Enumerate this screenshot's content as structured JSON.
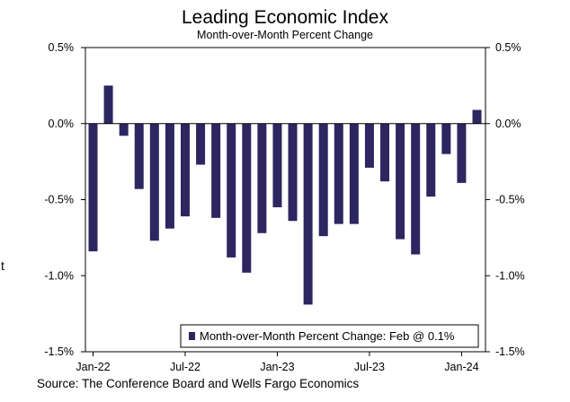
{
  "chart_data": {
    "type": "bar",
    "title": "Leading Economic Index",
    "subtitle": "Month-over-Month Percent Change",
    "x": [
      "Jan-22",
      "Feb-22",
      "Mar-22",
      "Apr-22",
      "May-22",
      "Jun-22",
      "Jul-22",
      "Aug-22",
      "Sep-22",
      "Oct-22",
      "Nov-22",
      "Dec-22",
      "Jan-23",
      "Feb-23",
      "Mar-23",
      "Apr-23",
      "May-23",
      "Jun-23",
      "Jul-23",
      "Aug-23",
      "Sep-23",
      "Oct-23",
      "Nov-23",
      "Dec-23",
      "Jan-24",
      "Feb-24"
    ],
    "x_tick_labels": [
      "Jan-22",
      "Jul-22",
      "Jan-23",
      "Jul-23",
      "Jan-24"
    ],
    "series": [
      {
        "name": "Month-over-Month Percent Change: Feb @ 0.1%",
        "color": "#2e2660",
        "values": [
          -0.84,
          0.25,
          -0.08,
          -0.43,
          -0.77,
          -0.69,
          -0.61,
          -0.27,
          -0.62,
          -0.88,
          -0.98,
          -0.72,
          -0.55,
          -0.64,
          -1.19,
          -0.74,
          -0.66,
          -0.66,
          -0.29,
          -0.38,
          -0.76,
          -0.86,
          -0.48,
          -0.2,
          -0.39,
          0.09
        ]
      }
    ],
    "ylim": [
      -1.5,
      0.5
    ],
    "y_ticks": [
      "0.5%",
      "0.0%",
      "-0.5%",
      "-1.0%",
      "-1.5%"
    ],
    "y_tick_values": [
      0.5,
      0.0,
      -0.5,
      -1.0,
      -1.5
    ],
    "grid": false,
    "legend_position": "bottom-right",
    "source": "Source: The Conference Board and Wells Fargo Economics",
    "stray_text": "t"
  }
}
